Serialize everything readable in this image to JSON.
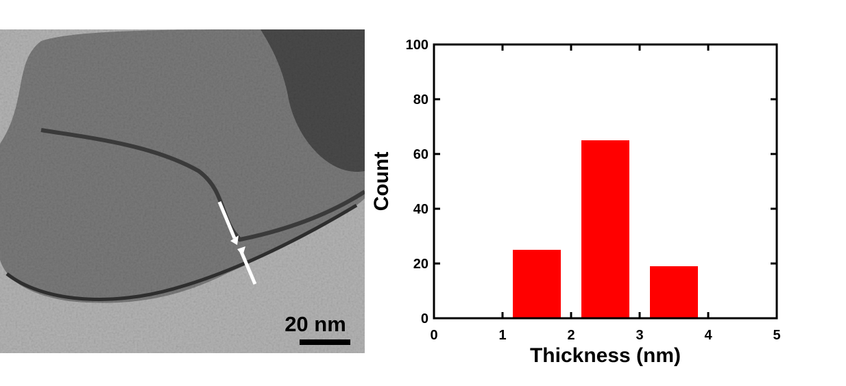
{
  "image": {
    "scale_bar_label": "20 nm"
  },
  "chart_data": {
    "type": "bar",
    "x": [
      1.5,
      2.5,
      3.5
    ],
    "values": [
      25,
      65,
      19
    ],
    "color": "#ff0000",
    "xlabel": "Thickness (nm)",
    "ylabel": "Count",
    "xlim": [
      0,
      5
    ],
    "xticks": [
      0,
      1,
      2,
      3,
      4,
      5
    ],
    "ylim": [
      0,
      100
    ],
    "yticks": [
      0,
      20,
      40,
      60,
      80,
      100
    ],
    "grid": false
  }
}
